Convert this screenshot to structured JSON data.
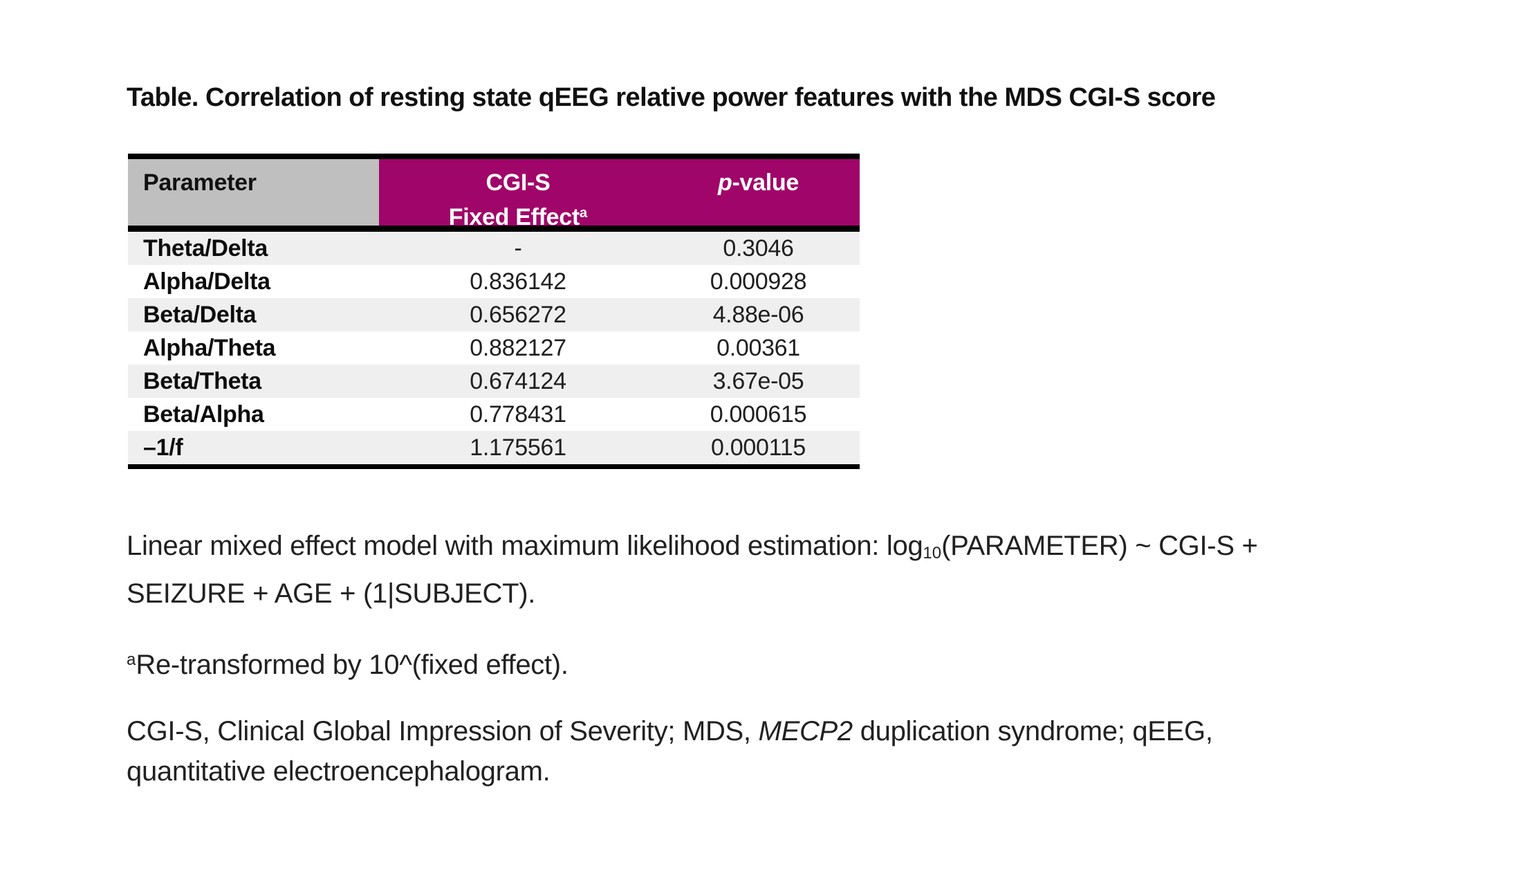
{
  "title": "Table. Correlation of resting state qEEG relative power features with the MDS CGI-S score",
  "table": {
    "columns": {
      "parameter": "Parameter",
      "effect_line1": "CGI-S",
      "effect_line2": "Fixed Effect",
      "effect_superscript": "a",
      "pvalue_italic_p": "p",
      "pvalue_rest": "-value"
    },
    "rows": [
      {
        "parameter": "Theta/Delta",
        "effect": "-",
        "pvalue": "0.3046"
      },
      {
        "parameter": "Alpha/Delta",
        "effect": "0.836142",
        "pvalue": "0.000928"
      },
      {
        "parameter": "Beta/Delta",
        "effect": "0.656272",
        "pvalue": "4.88e-06"
      },
      {
        "parameter": "Alpha/Theta",
        "effect": "0.882127",
        "pvalue": "0.00361"
      },
      {
        "parameter": "Beta/Theta",
        "effect": "0.674124",
        "pvalue": "3.67e-05"
      },
      {
        "parameter": "Beta/Alpha",
        "effect": "0.778431",
        "pvalue": "0.000615"
      },
      {
        "parameter": "–1/f",
        "effect": "1.175561",
        "pvalue": "0.000115"
      }
    ]
  },
  "footnotes": {
    "model": {
      "pre_sub": "Linear mixed effect model with maximum likelihood estimation: log",
      "sub": "10",
      "post_sub_line1": "(PARAMETER) ~ CGI-S +",
      "line2": "SEIZURE + AGE + (1|SUBJECT)."
    },
    "retransform": {
      "superscript": "a",
      "text": "Re-transformed by 10^(fixed effect)."
    },
    "abbreviations": {
      "part1": "CGI-S, Clinical Global Impression of Severity; MDS, ",
      "italic": "MECP2",
      "part2": " duplication syndrome; qEEG,",
      "line2": "quantitative electroencephalogram."
    }
  },
  "colors": {
    "header_magenta": "#a00569",
    "header_gray": "#bfbfbf",
    "row_stripe": "#efefef",
    "border_black": "#000000",
    "header_text_white": "#ffffff"
  }
}
